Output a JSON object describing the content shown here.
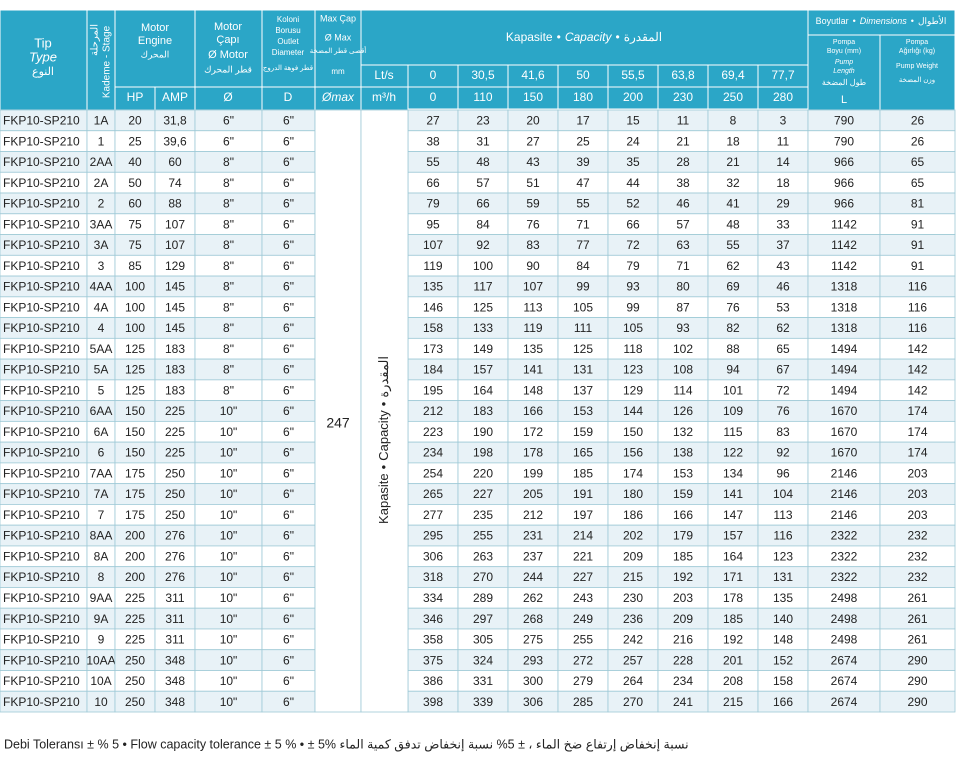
{
  "header": {
    "type": [
      "Tip",
      "Type",
      "النوع"
    ],
    "stage": [
      "المرحلة",
      "Kademe - Stage"
    ],
    "motor_engine": [
      "Motor",
      "Engine",
      "المحرك"
    ],
    "hp": "HP",
    "amp": "AMP",
    "motor_diameter": [
      "Motor",
      "Çapı",
      "Ø Motor",
      "قطر المحرك"
    ],
    "motor_diameter_unit": "Ø",
    "outlet": [
      "Koloni",
      "Borusu",
      "Outlet",
      "Diameter",
      "قطر فوهة الدروج"
    ],
    "outlet_unit": "D",
    "max_diameter": [
      "Max Çap",
      "Ø Max",
      "أقصى قطر المضخة",
      "mm"
    ],
    "max_diameter_unit": "Ømax",
    "capacity": [
      "Kapasite",
      "•",
      "Capacity",
      "•",
      "المقدرة"
    ],
    "flow_units": [
      "Lt/s",
      "m³/h"
    ],
    "flow_ls": [
      "0",
      "30,5",
      "41,6",
      "50",
      "55,5",
      "63,8",
      "69,4",
      "77,7"
    ],
    "flow_m3h": [
      "0",
      "110",
      "150",
      "180",
      "200",
      "230",
      "250",
      "280"
    ],
    "dimensions": [
      "Boyutlar",
      "•",
      "Dimensions",
      "•",
      "الأطوال"
    ],
    "pump_length": [
      "Pompa",
      "Boyu (mm)",
      "Pump",
      "Length",
      "طول المضخة",
      "L"
    ],
    "pump_weight": [
      "Pompa",
      "Ağırlığı (kg)",
      "Pump Weight",
      "وزن المضخة"
    ]
  },
  "max_diameter_value": "247",
  "rows": [
    [
      "FKP10-SP210",
      "1A",
      "20",
      "31,8",
      "6\"",
      "6\"",
      "27",
      "23",
      "20",
      "17",
      "15",
      "11",
      "8",
      "3",
      "790",
      "26"
    ],
    [
      "FKP10-SP210",
      "1",
      "25",
      "39,6",
      "6\"",
      "6\"",
      "38",
      "31",
      "27",
      "25",
      "24",
      "21",
      "18",
      "11",
      "790",
      "26"
    ],
    [
      "FKP10-SP210",
      "2AA",
      "40",
      "60",
      "8\"",
      "6\"",
      "55",
      "48",
      "43",
      "39",
      "35",
      "28",
      "21",
      "14",
      "966",
      "65"
    ],
    [
      "FKP10-SP210",
      "2A",
      "50",
      "74",
      "8\"",
      "6\"",
      "66",
      "57",
      "51",
      "47",
      "44",
      "38",
      "32",
      "18",
      "966",
      "65"
    ],
    [
      "FKP10-SP210",
      "2",
      "60",
      "88",
      "8\"",
      "6\"",
      "79",
      "66",
      "59",
      "55",
      "52",
      "46",
      "41",
      "29",
      "966",
      "81"
    ],
    [
      "FKP10-SP210",
      "3AA",
      "75",
      "107",
      "8\"",
      "6\"",
      "95",
      "84",
      "76",
      "71",
      "66",
      "57",
      "48",
      "33",
      "1142",
      "91"
    ],
    [
      "FKP10-SP210",
      "3A",
      "75",
      "107",
      "8\"",
      "6\"",
      "107",
      "92",
      "83",
      "77",
      "72",
      "63",
      "55",
      "37",
      "1142",
      "91"
    ],
    [
      "FKP10-SP210",
      "3",
      "85",
      "129",
      "8\"",
      "6\"",
      "119",
      "100",
      "90",
      "84",
      "79",
      "71",
      "62",
      "43",
      "1142",
      "91"
    ],
    [
      "FKP10-SP210",
      "4AA",
      "100",
      "145",
      "8\"",
      "6\"",
      "135",
      "117",
      "107",
      "99",
      "93",
      "80",
      "69",
      "46",
      "1318",
      "116"
    ],
    [
      "FKP10-SP210",
      "4A",
      "100",
      "145",
      "8\"",
      "6\"",
      "146",
      "125",
      "113",
      "105",
      "99",
      "87",
      "76",
      "53",
      "1318",
      "116"
    ],
    [
      "FKP10-SP210",
      "4",
      "100",
      "145",
      "8\"",
      "6\"",
      "158",
      "133",
      "119",
      "111",
      "105",
      "93",
      "82",
      "62",
      "1318",
      "116"
    ],
    [
      "FKP10-SP210",
      "5AA",
      "125",
      "183",
      "8\"",
      "6\"",
      "173",
      "149",
      "135",
      "125",
      "118",
      "102",
      "88",
      "65",
      "1494",
      "142"
    ],
    [
      "FKP10-SP210",
      "5A",
      "125",
      "183",
      "8\"",
      "6\"",
      "184",
      "157",
      "141",
      "131",
      "123",
      "108",
      "94",
      "67",
      "1494",
      "142"
    ],
    [
      "FKP10-SP210",
      "5",
      "125",
      "183",
      "8\"",
      "6\"",
      "195",
      "164",
      "148",
      "137",
      "129",
      "114",
      "101",
      "72",
      "1494",
      "142"
    ],
    [
      "FKP10-SP210",
      "6AA",
      "150",
      "225",
      "10\"",
      "6\"",
      "212",
      "183",
      "166",
      "153",
      "144",
      "126",
      "109",
      "76",
      "1670",
      "174"
    ],
    [
      "FKP10-SP210",
      "6A",
      "150",
      "225",
      "10\"",
      "6\"",
      "223",
      "190",
      "172",
      "159",
      "150",
      "132",
      "115",
      "83",
      "1670",
      "174"
    ],
    [
      "FKP10-SP210",
      "6",
      "150",
      "225",
      "10\"",
      "6\"",
      "234",
      "198",
      "178",
      "165",
      "156",
      "138",
      "122",
      "92",
      "1670",
      "174"
    ],
    [
      "FKP10-SP210",
      "7AA",
      "175",
      "250",
      "10\"",
      "6\"",
      "254",
      "220",
      "199",
      "185",
      "174",
      "153",
      "134",
      "96",
      "2146",
      "203"
    ],
    [
      "FKP10-SP210",
      "7A",
      "175",
      "250",
      "10\"",
      "6\"",
      "265",
      "227",
      "205",
      "191",
      "180",
      "159",
      "141",
      "104",
      "2146",
      "203"
    ],
    [
      "FKP10-SP210",
      "7",
      "175",
      "250",
      "10\"",
      "6\"",
      "277",
      "235",
      "212",
      "197",
      "186",
      "166",
      "147",
      "113",
      "2146",
      "203"
    ],
    [
      "FKP10-SP210",
      "8AA",
      "200",
      "276",
      "10\"",
      "6\"",
      "295",
      "255",
      "231",
      "214",
      "202",
      "179",
      "157",
      "116",
      "2322",
      "232"
    ],
    [
      "FKP10-SP210",
      "8A",
      "200",
      "276",
      "10\"",
      "6\"",
      "306",
      "263",
      "237",
      "221",
      "209",
      "185",
      "164",
      "123",
      "2322",
      "232"
    ],
    [
      "FKP10-SP210",
      "8",
      "200",
      "276",
      "10\"",
      "6\"",
      "318",
      "270",
      "244",
      "227",
      "215",
      "192",
      "171",
      "131",
      "2322",
      "232"
    ],
    [
      "FKP10-SP210",
      "9AA",
      "225",
      "311",
      "10\"",
      "6\"",
      "334",
      "289",
      "262",
      "243",
      "230",
      "203",
      "178",
      "135",
      "2498",
      "261"
    ],
    [
      "FKP10-SP210",
      "9A",
      "225",
      "311",
      "10\"",
      "6\"",
      "346",
      "297",
      "268",
      "249",
      "236",
      "209",
      "185",
      "140",
      "2498",
      "261"
    ],
    [
      "FKP10-SP210",
      "9",
      "225",
      "311",
      "10\"",
      "6\"",
      "358",
      "305",
      "275",
      "255",
      "242",
      "216",
      "192",
      "148",
      "2498",
      "261"
    ],
    [
      "FKP10-SP210",
      "10AA",
      "250",
      "348",
      "10\"",
      "6\"",
      "375",
      "324",
      "293",
      "272",
      "257",
      "228",
      "201",
      "152",
      "2674",
      "290"
    ],
    [
      "FKP10-SP210",
      "10A",
      "250",
      "348",
      "10\"",
      "6\"",
      "386",
      "331",
      "300",
      "279",
      "264",
      "234",
      "208",
      "158",
      "2674",
      "290"
    ],
    [
      "FKP10-SP210",
      "10",
      "250",
      "348",
      "10\"",
      "6\"",
      "398",
      "339",
      "306",
      "285",
      "270",
      "241",
      "215",
      "166",
      "2674",
      "290"
    ]
  ],
  "footer": "Debi Toleransı ± % 5 • Flow capacity tolerance ± 5 % • ± 5% نسبة إنخفاض إرتفاع ضخ الماء ، ± 5% نسبة إنخفاض تدفق كمية الماء"
}
